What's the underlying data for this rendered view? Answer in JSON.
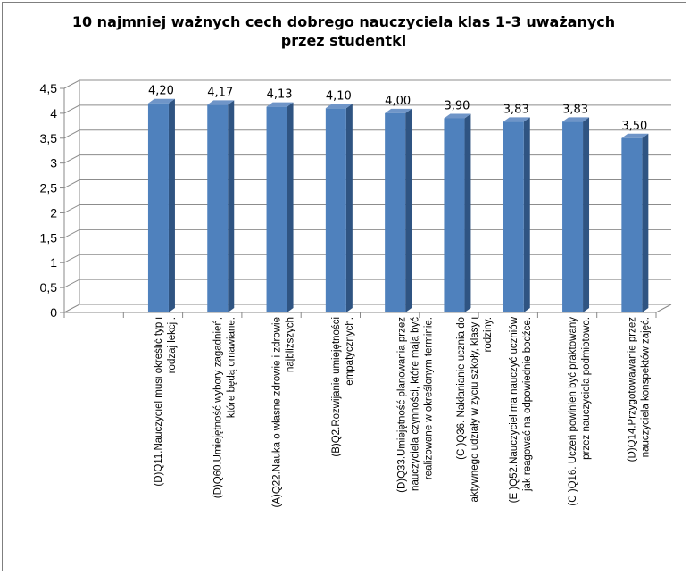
{
  "chart_data": {
    "type": "bar",
    "title": "10 najmniej  ważnych cech dobrego nauczyciela klas 1-3 uważanych przez studentki",
    "title_lines": [
      "10 najmniej  ważnych cech dobrego nauczyciela klas 1-3 uważanych",
      "przez studentki"
    ],
    "ylim": [
      0,
      4.5
    ],
    "yticks": [
      "0",
      "0,5",
      "1",
      "1,5",
      "2",
      "2,5",
      "3",
      "3,5",
      "4",
      "4,5"
    ],
    "grid": true,
    "bar_color": "#4f81bd",
    "categories": [
      "",
      "(D)Q11.Nauczyciel musi określić typ i rodzaj lekcji.",
      "(D)Q60.Umiejętność wybory zagadnień, które będą omawiane.",
      "(A)Q22.Nauka o własne zdrowie i zdrowie najbliższych",
      "(B)Q2.Rozwijanie umiejętności empatycznych.",
      "(D)Q33.Umiejętność planowania przez nauczyciela czynności, które mają być realizowane w określonym terminie.",
      "(C )Q36. Nakłanianie ucznia do aktywnego udziały w życiu szkoły,  klasy i rodziny.",
      "(E )Q52.Nauczyciel ma nauczyć uczniów jak reagować na odpowiednie bodźce.",
      "(C )Q16. Uczeń powinien być praktowany przez nauczyciela podmiotowo.",
      "(D)Q14.Przygotowawanie przez nauczyciela konspektów zajęć."
    ],
    "category_lines": [
      [],
      [
        "(D)Q11.Nauczyciel musi określić typ i",
        "rodzaj lekcji."
      ],
      [
        "(D)Q60.Umiejętność wybory zagadnień,",
        "które będą omawiane."
      ],
      [
        "(A)Q22.Nauka o własne zdrowie i zdrowie",
        "najbliższych"
      ],
      [
        "(B)Q2.Rozwijanie umiejętności",
        "empatycznych."
      ],
      [
        "(D)Q33.Umiejętność planowania przez",
        "nauczyciela czynności, które mają być",
        "realizowane w określonym terminie."
      ],
      [
        "(C )Q36. Nakłanianie ucznia do",
        "aktywnego udziały w życiu szkoły,  klasy i",
        "rodziny."
      ],
      [
        "(E )Q52.Nauczyciel ma nauczyć uczniów",
        "jak reagować na odpowiednie bodźce."
      ],
      [
        "(C )Q16. Uczeń powinien być praktowany",
        "przez nauczyciela podmiotowo."
      ],
      [
        "(D)Q14.Przygotowawanie przez",
        "nauczyciela konspektów zajęć."
      ]
    ],
    "values": [
      null,
      4.2,
      4.17,
      4.13,
      4.1,
      4.0,
      3.9,
      3.83,
      3.83,
      3.5
    ],
    "value_labels": [
      "",
      "4,20",
      "4,17",
      "4,13",
      "4,10",
      "4,00",
      "3,90",
      "3,83",
      "3,83",
      "3,50"
    ]
  }
}
